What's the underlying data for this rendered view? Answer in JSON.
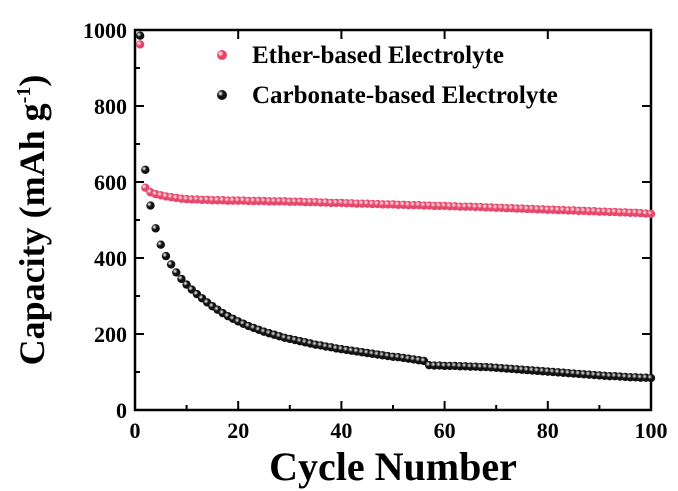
{
  "chart_data": {
    "type": "scatter",
    "title": "",
    "xlabel": "Cycle Number",
    "ylabel": "Capacity (mAh g",
    "ylabel_sup": "-1",
    "ylabel_close": ")",
    "xlim": [
      0,
      100
    ],
    "ylim": [
      0,
      1000
    ],
    "x_ticks": [
      0,
      20,
      40,
      60,
      80,
      100
    ],
    "y_ticks": [
      0,
      200,
      400,
      600,
      800,
      1000
    ],
    "grid": false,
    "legend_position": "top-right",
    "series": [
      {
        "name": "Ether-based Electrolyte",
        "color": "#e8466a",
        "x": [
          1,
          2,
          3,
          4,
          5,
          6,
          7,
          8,
          9,
          10,
          11,
          12,
          13,
          14,
          15,
          16,
          17,
          18,
          19,
          20,
          21,
          22,
          23,
          24,
          25,
          26,
          27,
          28,
          29,
          30,
          31,
          32,
          33,
          34,
          35,
          36,
          37,
          38,
          39,
          40,
          41,
          42,
          43,
          44,
          45,
          46,
          47,
          48,
          49,
          50,
          51,
          52,
          53,
          54,
          55,
          56,
          57,
          58,
          59,
          60,
          61,
          62,
          63,
          64,
          65,
          66,
          67,
          68,
          69,
          70,
          71,
          72,
          73,
          74,
          75,
          76,
          77,
          78,
          79,
          80,
          81,
          82,
          83,
          84,
          85,
          86,
          87,
          88,
          89,
          90,
          91,
          92,
          93,
          94,
          95,
          96,
          97,
          98,
          99,
          100
        ],
        "y": [
          962,
          585,
          573,
          568,
          565,
          562,
          560,
          558,
          556,
          555,
          554,
          554,
          553,
          553,
          552,
          552,
          552,
          551,
          551,
          551,
          551,
          550,
          550,
          550,
          550,
          549,
          549,
          549,
          549,
          548,
          548,
          548,
          547,
          547,
          547,
          546,
          546,
          545,
          545,
          545,
          544,
          544,
          543,
          543,
          543,
          542,
          542,
          541,
          541,
          541,
          540,
          540,
          539,
          539,
          539,
          538,
          538,
          537,
          537,
          537,
          536,
          536,
          535,
          535,
          535,
          534,
          534,
          533,
          533,
          532,
          532,
          531,
          531,
          530,
          530,
          529,
          529,
          528,
          528,
          527,
          527,
          526,
          526,
          525,
          525,
          524,
          524,
          523,
          523,
          522,
          522,
          521,
          521,
          520,
          520,
          519,
          519,
          518,
          517,
          516
        ]
      },
      {
        "name": "Carbonate-based Electrolyte",
        "color": "#111111",
        "x": [
          1,
          2,
          3,
          4,
          5,
          6,
          7,
          8,
          9,
          10,
          11,
          12,
          13,
          14,
          15,
          16,
          17,
          18,
          19,
          20,
          21,
          22,
          23,
          24,
          25,
          26,
          27,
          28,
          29,
          30,
          31,
          32,
          33,
          34,
          35,
          36,
          37,
          38,
          39,
          40,
          41,
          42,
          43,
          44,
          45,
          46,
          47,
          48,
          49,
          50,
          51,
          52,
          53,
          54,
          55,
          56,
          57,
          58,
          59,
          60,
          61,
          62,
          63,
          64,
          65,
          66,
          67,
          68,
          69,
          70,
          71,
          72,
          73,
          74,
          75,
          76,
          77,
          78,
          79,
          80,
          81,
          82,
          83,
          84,
          85,
          86,
          87,
          88,
          89,
          90,
          91,
          92,
          93,
          94,
          95,
          96,
          97,
          98,
          99,
          100
        ],
        "y": [
          985,
          632,
          538,
          478,
          435,
          405,
          383,
          362,
          345,
          330,
          317,
          305,
          294,
          283,
          273,
          264,
          255,
          247,
          240,
          233,
          227,
          221,
          216,
          211,
          206,
          202,
          198,
          194,
          190,
          187,
          184,
          181,
          178,
          175,
          172,
          170,
          167,
          165,
          162,
          160,
          158,
          156,
          154,
          152,
          150,
          148,
          146,
          144,
          142,
          140,
          139,
          137,
          135,
          133,
          131,
          129,
          118,
          117,
          117,
          116,
          116,
          116,
          115,
          115,
          114,
          114,
          113,
          113,
          112,
          111,
          110,
          109,
          108,
          107,
          106,
          105,
          104,
          103,
          102,
          101,
          100,
          99,
          98,
          97,
          96,
          95,
          94,
          93,
          92,
          91,
          90,
          89,
          89,
          88,
          87,
          86,
          86,
          85,
          85,
          84
        ]
      }
    ]
  }
}
